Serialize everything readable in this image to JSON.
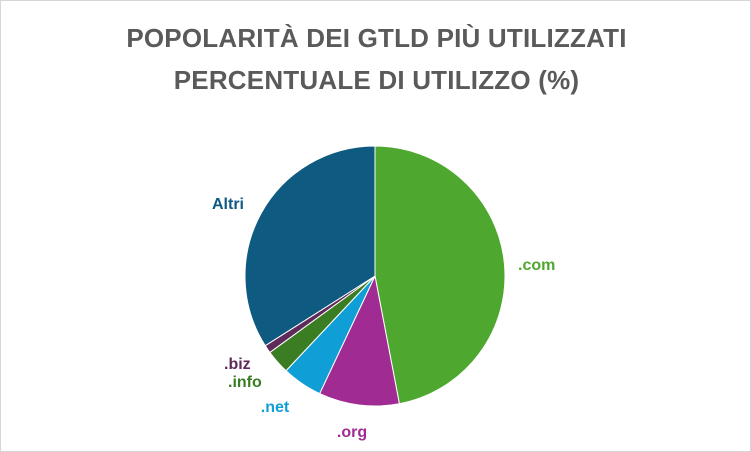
{
  "chart_data": {
    "type": "pie",
    "title": "POPOLARITÀ DEI GTLD PIÙ UTILIZZATI",
    "subtitle": "PERCENTUALE DI UTILIZZO (%)",
    "slices": [
      {
        "label": ".com",
        "value": 47.0,
        "color": "#4ea72e"
      },
      {
        "label": ".org",
        "value": 10.0,
        "color": "#a02b93"
      },
      {
        "label": ".net",
        "value": 5.0,
        "color": "#0f9ed5"
      },
      {
        "label": ".info",
        "value": 3.0,
        "color": "#3b7d23"
      },
      {
        "label": ".biz",
        "value": 1.0,
        "color": "#5e2a5a"
      },
      {
        "label": "Altri",
        "value": 34.0,
        "color": "#0e5a80"
      }
    ],
    "legend": "none"
  }
}
